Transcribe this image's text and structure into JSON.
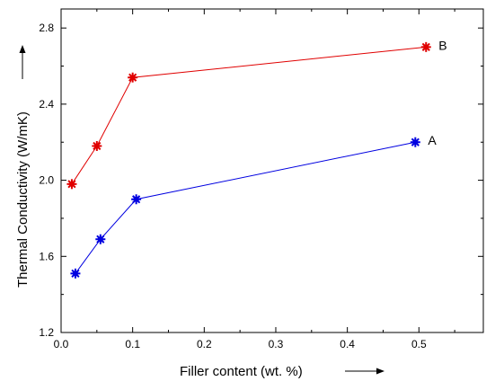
{
  "chart_data": {
    "type": "line",
    "xlabel": "Filler content (wt. %)",
    "ylabel": "Thermal Conductivity (W/mK)",
    "xlim": [
      0.0,
      0.59
    ],
    "ylim": [
      1.2,
      2.9
    ],
    "xticks": [
      "0.0",
      "0.1",
      "0.2",
      "0.3",
      "0.4",
      "0.5"
    ],
    "yticks": [
      "1.2",
      "1.6",
      "2.0",
      "2.4",
      "2.8"
    ],
    "grid": false,
    "legend": "none",
    "series": [
      {
        "name": "B",
        "color": "#e00000",
        "x": [
          0.015,
          0.05,
          0.1,
          0.51
        ],
        "y": [
          1.98,
          2.18,
          2.54,
          2.7
        ]
      },
      {
        "name": "A",
        "color": "#0000e0",
        "x": [
          0.02,
          0.055,
          0.105,
          0.495
        ],
        "y": [
          1.51,
          1.69,
          1.9,
          2.2
        ]
      }
    ]
  }
}
